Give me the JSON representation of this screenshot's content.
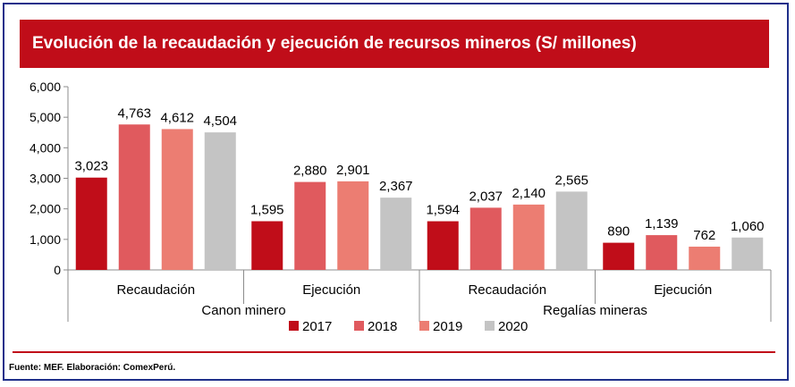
{
  "title": "Evolución de la recaudación y ejecución de recursos mineros (S/ millones)",
  "source": "Fuente: MEF. Elaboración: ComexPerú.",
  "chart_data": {
    "type": "bar",
    "categories": [
      "Recaudación",
      "Ejecución",
      "Recaudación",
      "Ejecución"
    ],
    "groups": [
      {
        "label": "Canon minero",
        "categories": [
          0,
          1
        ]
      },
      {
        "label": "Regalías mineras",
        "categories": [
          2,
          3
        ]
      }
    ],
    "series": [
      {
        "name": "2017",
        "color": "#c00d19",
        "values": [
          3023,
          1595,
          1594,
          890
        ]
      },
      {
        "name": "2018",
        "color": "#e05a5e",
        "values": [
          4763,
          2880,
          2037,
          1139
        ]
      },
      {
        "name": "2019",
        "color": "#ec7d72",
        "values": [
          4612,
          2901,
          2140,
          762
        ]
      },
      {
        "name": "2020",
        "color": "#c4c4c4",
        "values": [
          4504,
          2367,
          2565,
          1060
        ]
      }
    ],
    "data_labels": [
      [
        "3,023",
        "1,595",
        "1,594",
        "890"
      ],
      [
        "4,763",
        "2,880",
        "2,037",
        "1,139"
      ],
      [
        "4,612",
        "2,901",
        "2,140",
        "762"
      ],
      [
        "4,504",
        "2,367",
        "2,565",
        "1,060"
      ]
    ],
    "yticks": [
      0,
      1000,
      2000,
      3000,
      4000,
      5000,
      6000
    ],
    "ytick_labels": [
      "0",
      "1,000",
      "2,000",
      "3,000",
      "4,000",
      "5,000",
      "6,000"
    ],
    "ylim": [
      0,
      6000
    ],
    "grid": false,
    "legend_position": "bottom"
  }
}
